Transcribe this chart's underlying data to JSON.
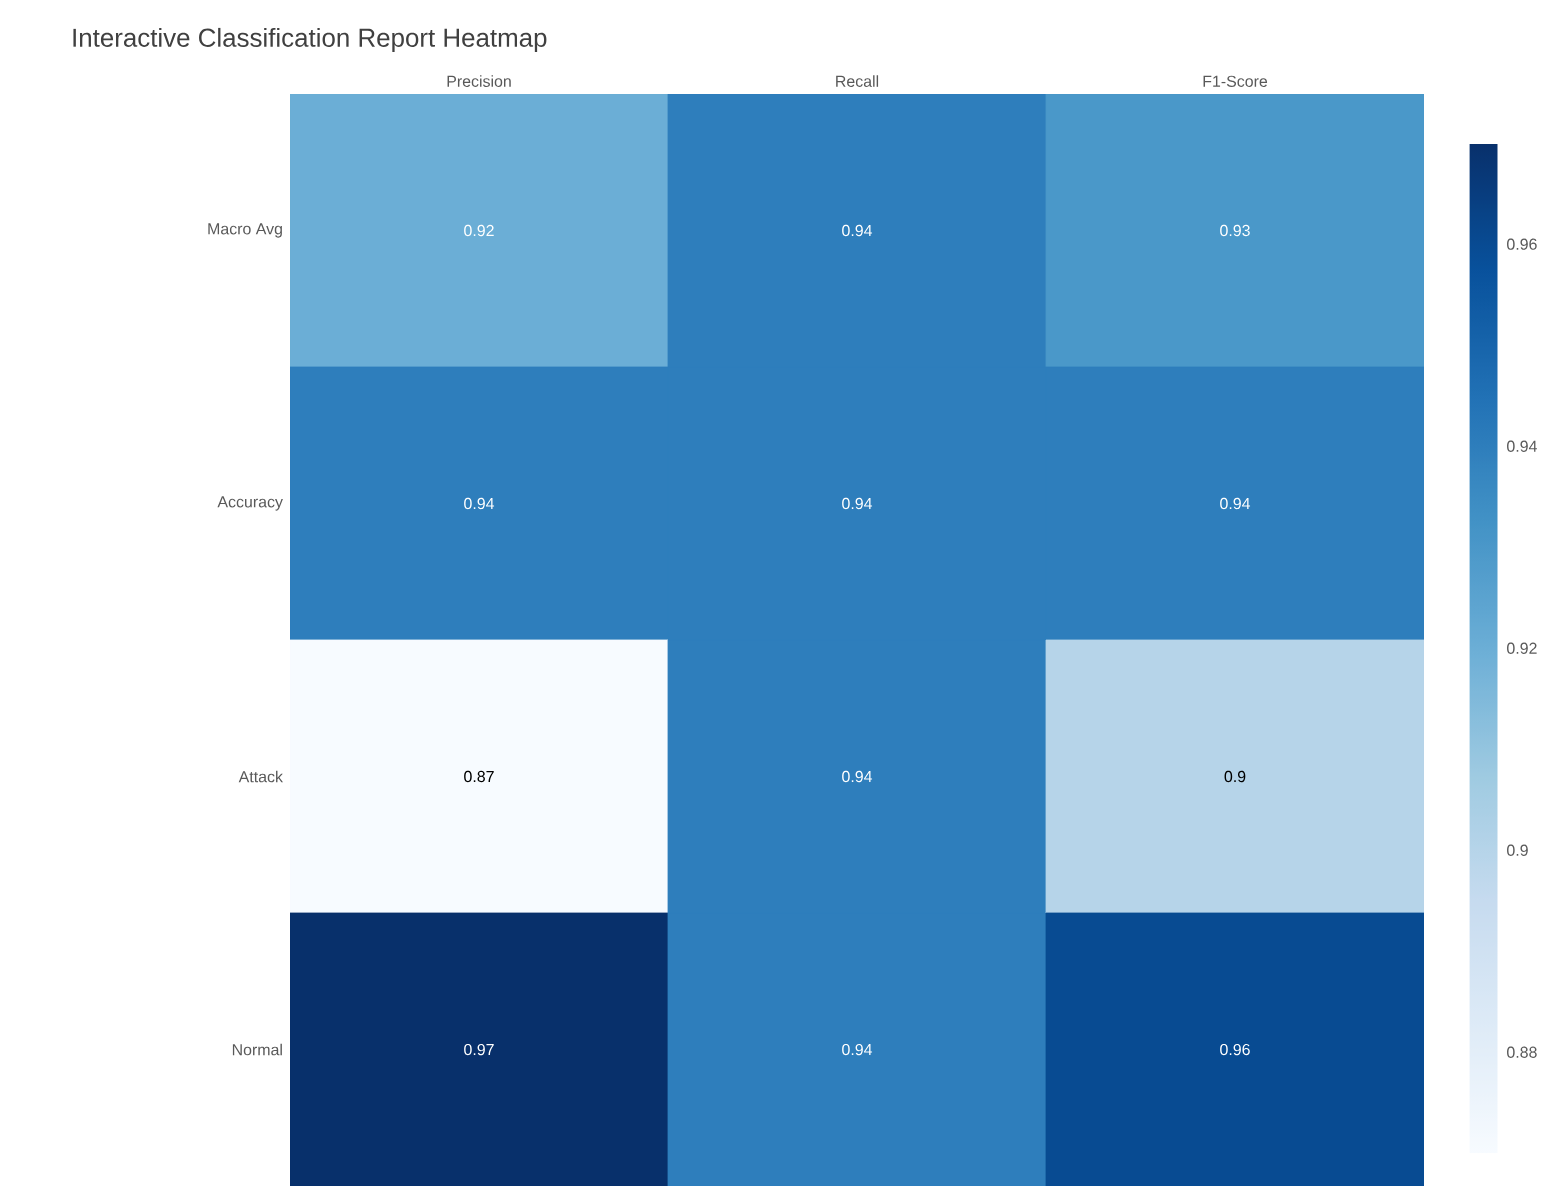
{
  "chart_data": {
    "type": "heatmap",
    "title": "Interactive Classification Report Heatmap",
    "categories": [
      "Precision",
      "Recall",
      "F1-Score"
    ],
    "y_categories": [
      "Macro Avg",
      "Accuracy",
      "Attack",
      "Normal"
    ],
    "cells": [
      [
        0.92,
        0.94,
        0.93
      ],
      [
        0.94,
        0.94,
        0.94
      ],
      [
        0.87,
        0.94,
        0.9
      ],
      [
        0.97,
        0.94,
        0.96
      ]
    ],
    "data_labels": true,
    "clim": [
      0.87,
      0.97
    ],
    "cticks": [
      0.88,
      0.9,
      0.92,
      0.94,
      0.96
    ]
  }
}
